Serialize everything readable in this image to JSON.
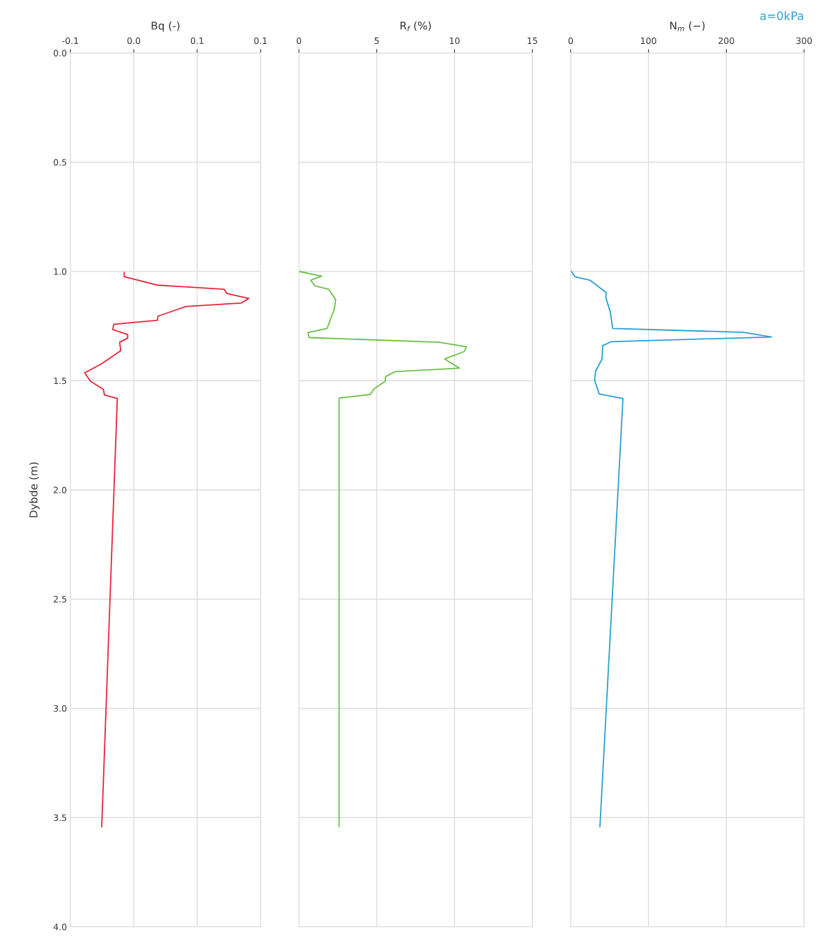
{
  "chart_data": [
    {
      "type": "line",
      "xlabel": "Bq (-)",
      "ylabel": "Dybde (m)",
      "xlim": [
        -0.075,
        0.15
      ],
      "xticks": [
        {
          "value": -0.075,
          "label": "-0.1"
        },
        {
          "value": 0,
          "label": "0.0"
        },
        {
          "value": 0.075,
          "label": "0.1"
        },
        {
          "value": 0.15,
          "label": "0.1"
        }
      ],
      "ylim": [
        4.0,
        0.0
      ],
      "yticks": [
        {
          "value": 0,
          "label": "0.0"
        },
        {
          "value": 0.5,
          "label": "0.5"
        },
        {
          "value": 1,
          "label": "1.0"
        },
        {
          "value": 1.5,
          "label": "1.5"
        },
        {
          "value": 2,
          "label": "2.0"
        },
        {
          "value": 2.5,
          "label": "2.5"
        },
        {
          "value": 3,
          "label": "3.0"
        },
        {
          "value": 3.5,
          "label": "3.5"
        },
        {
          "value": 4,
          "label": "4.0"
        }
      ],
      "grid": true,
      "marker": "none",
      "line_style": "solid",
      "series": [
        {
          "color": "#e8233a",
          "x": [
            -0.0113,
            -0.0113,
            0.0286,
            0.107,
            0.11,
            0.136,
            0.127,
            0.0615,
            0.0286,
            0.028,
            -0.0236,
            -0.025,
            -0.0072,
            -0.0072,
            -0.0167,
            -0.0154,
            -0.0387,
            -0.058,
            -0.0511,
            -0.036,
            -0.0346,
            -0.0195,
            -0.0379
          ],
          "values": [
            1.005,
            1.024,
            1.063,
            1.082,
            1.101,
            1.124,
            1.145,
            1.161,
            1.205,
            1.224,
            1.242,
            1.266,
            1.289,
            1.305,
            1.324,
            1.363,
            1.424,
            1.464,
            1.503,
            1.54,
            1.566,
            1.582,
            3.542
          ]
        }
      ]
    },
    {
      "type": "line",
      "xlabel": "R$_{f}$ (%)",
      "xlim": [
        0,
        15
      ],
      "xticks": [
        0,
        5,
        10,
        15
      ],
      "ylim": [
        4.0,
        0.0
      ],
      "yticks": [
        0,
        0.5,
        1,
        1.5,
        2,
        2.5,
        3,
        3.5,
        4
      ],
      "tick_labels": "x",
      "grid": true,
      "marker": "none",
      "line_style": "solid",
      "series": [
        {
          "color": "#6cc04a",
          "x": [
            0.01,
            1.46,
            0.76,
            1.02,
            1.91,
            2.36,
            2.28,
            2.06,
            1.81,
            0.57,
            0.67,
            9.0,
            10.76,
            10.64,
            9.37,
            10.31,
            6.17,
            5.57,
            5.54,
            4.82,
            4.6,
            2.58,
            2.58
          ],
          "values": [
            1.0,
            1.022,
            1.04,
            1.066,
            1.082,
            1.129,
            1.171,
            1.213,
            1.261,
            1.28,
            1.303,
            1.324,
            1.345,
            1.366,
            1.401,
            1.443,
            1.459,
            1.482,
            1.503,
            1.538,
            1.563,
            1.58,
            3.542
          ]
        }
      ]
    },
    {
      "type": "line",
      "xlabel": "N$_{m}$ (−)",
      "annotations": [
        "a=0kPa"
      ],
      "xlim": [
        0,
        300
      ],
      "xticks": [
        0,
        100,
        200,
        300
      ],
      "ylim": [
        4.0,
        0.0
      ],
      "yticks": [
        0,
        0.5,
        1,
        1.5,
        2,
        2.5,
        3,
        3.5,
        4
      ],
      "tick_labels": "x",
      "grid": true,
      "marker": "none",
      "line_style": "solid",
      "series": [
        {
          "color": "#2a9fd0",
          "x": [
            0.9,
            5.4,
            24.8,
            45.7,
            45.1,
            51.0,
            54.0,
            221.8,
            258.2,
            51.7,
            41.2,
            40.3,
            32.2,
            30.7,
            36.7,
            67.2,
            37.6
          ],
          "values": [
            1.0,
            1.024,
            1.04,
            1.097,
            1.118,
            1.187,
            1.261,
            1.279,
            1.3,
            1.322,
            1.34,
            1.401,
            1.456,
            1.498,
            1.561,
            1.582,
            3.542
          ]
        }
      ]
    }
  ]
}
